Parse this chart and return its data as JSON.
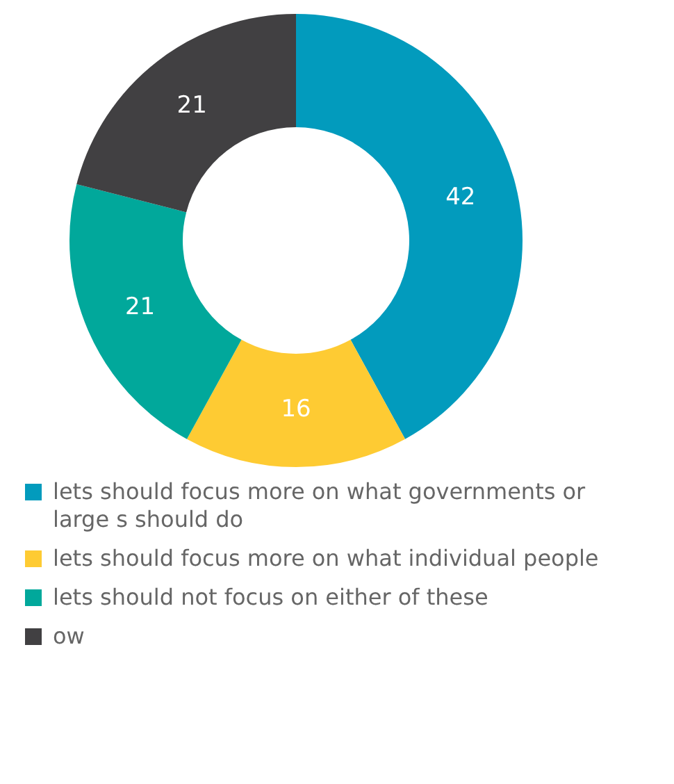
{
  "chart_data": {
    "type": "donut",
    "categories": [
      "lets should focus more on what governments or large s should do",
      "lets should focus more on what individual people",
      "lets should not focus on either of these",
      "ow"
    ],
    "values": [
      42,
      16,
      21,
      21
    ],
    "colors": [
      "#029bbd",
      "#fecb33",
      "#01a89b",
      "#414042"
    ],
    "data_labels": true,
    "legend": "bottom"
  }
}
